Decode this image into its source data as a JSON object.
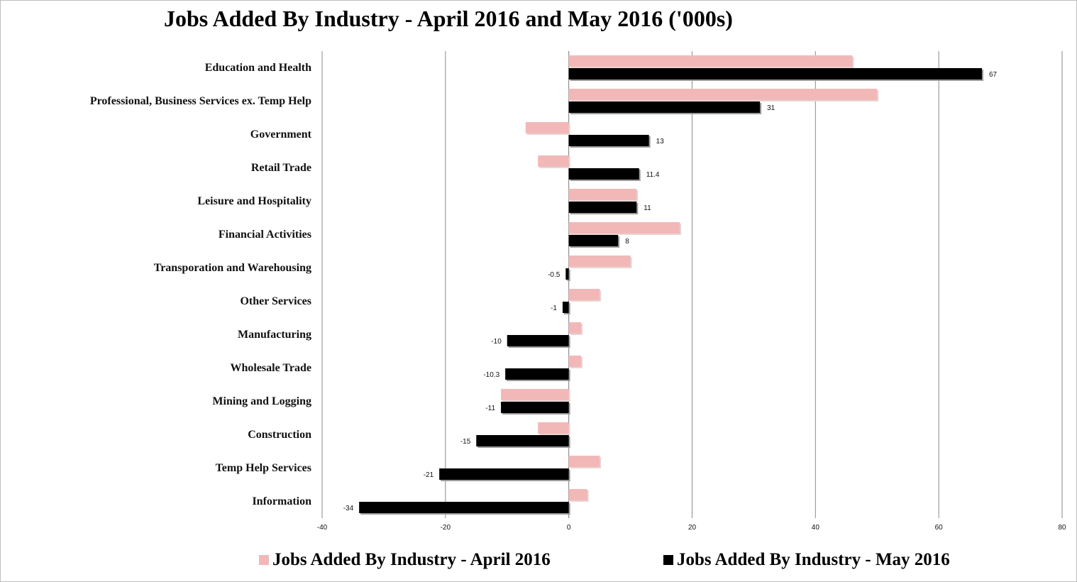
{
  "chart_data": {
    "type": "bar",
    "orientation": "horizontal",
    "title": "Jobs Added By Industry - April 2016 and May 2016 ('000s)",
    "categories": [
      "Education and Health",
      "Professional, Business Services ex. Temp Help",
      "Government",
      "Retail Trade",
      "Leisure and Hospitality",
      "Financial Activities",
      "Transporation and Warehousing",
      "Other Services",
      "Manufacturing",
      "Wholesale Trade",
      "Mining and Logging",
      "Construction",
      "Temp Help Services",
      "Information"
    ],
    "series": [
      {
        "name": "Jobs Added By Industry - April 2016",
        "color": "#f2b8b8",
        "values": [
          46,
          50,
          -7,
          -5,
          11,
          18,
          10,
          5,
          2,
          2,
          -11,
          -5,
          5,
          3
        ],
        "labels": []
      },
      {
        "name": "Jobs Added By Industry - May 2016",
        "color": "#000000",
        "values": [
          67,
          31,
          13,
          11.4,
          11,
          8,
          -0.5,
          -1,
          -10,
          -10.3,
          -11,
          -15,
          -21,
          -34
        ],
        "labels": [
          "67",
          "31",
          "13",
          "11.4",
          "11",
          "8",
          "-0.5",
          "-1",
          "-10",
          "-10.3",
          "-11",
          "-15",
          "-21",
          "-34"
        ]
      }
    ],
    "xlim": [
      -40,
      80
    ],
    "xticks": [
      -40,
      -20,
      0,
      20,
      40,
      60,
      80
    ],
    "grid": true,
    "legend_position": "bottom"
  }
}
